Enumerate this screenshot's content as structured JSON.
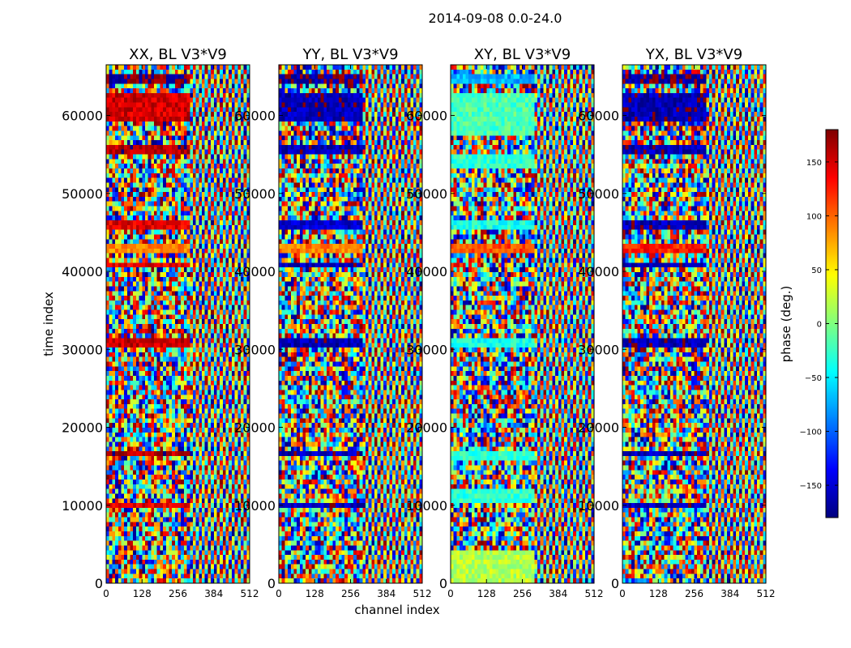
{
  "chart_data": {
    "type": "heatmap",
    "suptitle": "2014-09-08 0.0-24.0",
    "xlabel": "channel index",
    "ylabel": "time index",
    "xlim": [
      0,
      512
    ],
    "ylim": [
      0,
      66500
    ],
    "x_ticks": [
      0,
      128,
      256,
      384,
      512
    ],
    "y_ticks": [
      0,
      10000,
      20000,
      30000,
      40000,
      50000,
      60000
    ],
    "panels": [
      {
        "title": "XX, BL V3*V9",
        "polarization": "XX"
      },
      {
        "title": "YY, BL V3*V9",
        "polarization": "YY"
      },
      {
        "title": "XY, BL V3*V9",
        "polarization": "XY"
      },
      {
        "title": "YX, BL V3*V9",
        "polarization": "YX"
      }
    ],
    "colorbar": {
      "label": "phase (deg.)",
      "range": [
        -180,
        180
      ],
      "ticks": [
        150,
        100,
        50,
        0,
        -50,
        -100,
        -150
      ],
      "tick_labels": [
        "150",
        "100",
        "50",
        "0",
        "−50",
        "−100",
        "−150"
      ],
      "colormap": "jet"
    }
  }
}
